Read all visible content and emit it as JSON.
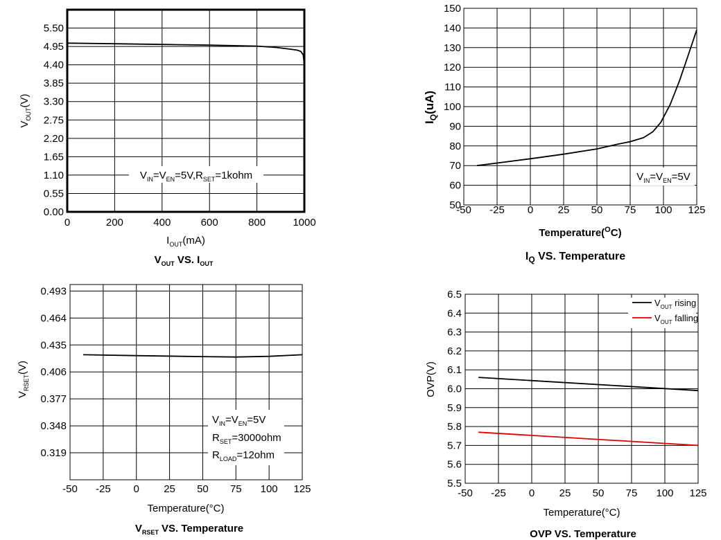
{
  "chart_data": [
    {
      "type": "line",
      "title": {
        "main": "V",
        "sub": "OUT",
        "mid": "  VS.  I",
        "sub2": "OUT"
      },
      "xlabel": {
        "main": "I",
        "sub": "OUT",
        "tail": "(mA)"
      },
      "ylabel": {
        "main": "V",
        "sub": "OUT",
        "tail": "(V)"
      },
      "annotation": "V_IN=V_EN=5V,R_SET=1kohm",
      "annotation_parts": {
        "a": "V",
        "a_sub": "IN",
        "b": "=V",
        "b_sub": "EN",
        "c": "=5V,R",
        "c_sub": "SET",
        "d": "=1kohm"
      },
      "xlim": [
        0,
        1000
      ],
      "ylim": [
        0,
        6.05
      ],
      "xticks": [
        0,
        200,
        400,
        600,
        800,
        1000
      ],
      "xtick_labels": [
        "0",
        "200",
        "400",
        "600",
        "800",
        "1000"
      ],
      "yticks": [
        0,
        0.55,
        1.1,
        1.65,
        2.2,
        2.75,
        3.3,
        3.85,
        4.4,
        4.95,
        5.5
      ],
      "ytick_labels": [
        "0.00",
        "0.55",
        "1.10",
        "1.65",
        "2.20",
        "2.75",
        "3.30",
        "3.85",
        "4.40",
        "4.95",
        "5.50"
      ],
      "grid": true,
      "series": [
        {
          "name": "VOUT",
          "color": "#000000",
          "x": [
            0,
            200,
            400,
            600,
            800,
            880,
            940,
            970,
            985,
            995,
            1000
          ],
          "y": [
            5.05,
            5.03,
            5.01,
            4.99,
            4.96,
            4.92,
            4.87,
            4.84,
            4.8,
            4.7,
            4.4
          ]
        }
      ]
    },
    {
      "type": "line",
      "title": {
        "main": "I",
        "sub": "Q",
        "mid": "  VS.  Temperature"
      },
      "xlabel": {
        "main": "Temperature(",
        "sup": "O",
        "tail": "C)"
      },
      "ylabel": {
        "main": "I",
        "sub": "Q",
        "tail": "(uA)"
      },
      "annotation": "V_IN=V_EN=5V",
      "annotation_parts": {
        "a": "V",
        "a_sub": "IN",
        "b": "=V",
        "b_sub": "EN",
        "c": "=5V"
      },
      "xlim": [
        -50,
        125
      ],
      "ylim": [
        50,
        150
      ],
      "xticks": [
        -50,
        -25,
        0,
        25,
        50,
        75,
        100,
        125
      ],
      "xtick_labels": [
        "-50",
        "-25",
        "0",
        "25",
        "50",
        "75",
        "100",
        "125"
      ],
      "yticks": [
        50,
        60,
        70,
        80,
        90,
        100,
        110,
        120,
        130,
        140,
        150
      ],
      "ytick_labels": [
        "50",
        "60",
        "70",
        "80",
        "90",
        "100",
        "110",
        "120",
        "130",
        "140",
        "150"
      ],
      "grid": true,
      "series": [
        {
          "name": "IQ",
          "color": "#000000",
          "x": [
            -40,
            -25,
            0,
            25,
            50,
            65,
            75,
            85,
            92,
            98,
            105,
            112,
            118,
            125
          ],
          "y": [
            70,
            71.3,
            73.5,
            75.8,
            78.5,
            80.8,
            82.2,
            84.2,
            87.2,
            92,
            101,
            113,
            125,
            139
          ]
        }
      ]
    },
    {
      "type": "line",
      "title": {
        "main": "V",
        "sub": "RSET",
        "mid": "  VS.  Temperature"
      },
      "xlabel": {
        "main": "Temperature(°C)"
      },
      "ylabel": {
        "main": "V",
        "sub": "RSET",
        "tail": "(V)"
      },
      "annotation_lines": [
        {
          "a": "V",
          "a_sub": "IN",
          "b": "=V",
          "b_sub": "EN",
          "c": "=5V"
        },
        {
          "a": "R",
          "a_sub": "SET",
          "b": "=3000ohm"
        },
        {
          "a": "R",
          "a_sub": "LOAD",
          "b": "=12ohm"
        }
      ],
      "xlim": [
        -50,
        125
      ],
      "ylim": [
        0.29,
        0.5
      ],
      "xticks": [
        -50,
        -25,
        0,
        25,
        50,
        75,
        100,
        125
      ],
      "xtick_labels": [
        "-50",
        "-25",
        "0",
        "25",
        "50",
        "75",
        "100",
        "125"
      ],
      "yticks": [
        0.319,
        0.348,
        0.377,
        0.406,
        0.435,
        0.464,
        0.493
      ],
      "ytick_labels": [
        "0.319",
        "0.348",
        "0.377",
        "0.406",
        "0.435",
        "0.464",
        "0.493"
      ],
      "grid": true,
      "series": [
        {
          "name": "VRSET",
          "color": "#000000",
          "x": [
            -40,
            0,
            50,
            75,
            100,
            125
          ],
          "y": [
            0.4245,
            0.4235,
            0.4225,
            0.422,
            0.4228,
            0.4245
          ]
        }
      ]
    },
    {
      "type": "line",
      "title": {
        "main": "OVP VS. Temperature"
      },
      "xlabel": {
        "main": "Temperature(°C)"
      },
      "ylabel": {
        "main": "OVP(V)"
      },
      "xlim": [
        -50,
        125
      ],
      "ylim": [
        5.5,
        6.5
      ],
      "xticks": [
        -50,
        -25,
        0,
        25,
        50,
        75,
        100,
        125
      ],
      "xtick_labels": [
        "-50",
        "-25",
        "0",
        "25",
        "50",
        "75",
        "100",
        "125"
      ],
      "yticks": [
        5.5,
        5.6,
        5.7,
        5.8,
        5.9,
        6.0,
        6.1,
        6.2,
        6.3,
        6.4,
        6.5
      ],
      "ytick_labels": [
        "5.5",
        "5.6",
        "5.7",
        "5.8",
        "5.9",
        "6.0",
        "6.1",
        "6.2",
        "6.3",
        "6.4",
        "6.5"
      ],
      "grid": true,
      "legend_position": "top-right",
      "series": [
        {
          "name": "VOUT rising",
          "legend_main": "V",
          "legend_sub": "OUT",
          "legend_tail": " rising",
          "color": "#000000",
          "x": [
            -40,
            125
          ],
          "y": [
            6.06,
            5.99
          ]
        },
        {
          "name": "VOUT falling",
          "legend_main": "V",
          "legend_sub": "OUT",
          "legend_tail": " falling",
          "color": "#e00000",
          "x": [
            -40,
            125
          ],
          "y": [
            5.77,
            5.7
          ]
        }
      ]
    }
  ]
}
